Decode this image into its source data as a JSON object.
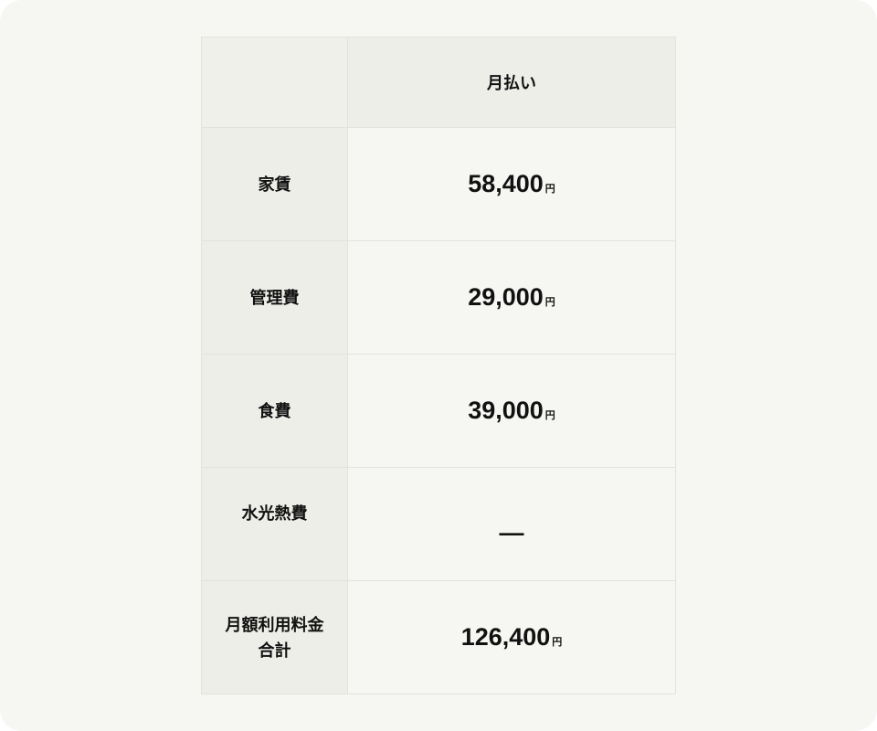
{
  "table": {
    "header": {
      "corner": "",
      "column": "月払い"
    },
    "unit": "円",
    "rows": [
      {
        "label": "家賃",
        "value": "58,400",
        "has_unit": true
      },
      {
        "label": "管理費",
        "value": "29,000",
        "has_unit": true
      },
      {
        "label": "食費",
        "value": "39,000",
        "has_unit": true
      },
      {
        "label": "水光熱費",
        "value": "—",
        "has_unit": false
      },
      {
        "label": "月額利用料金合計",
        "label_line1": "月額利用料金",
        "label_line2": "合計",
        "value": "126,400",
        "has_unit": true
      }
    ]
  }
}
